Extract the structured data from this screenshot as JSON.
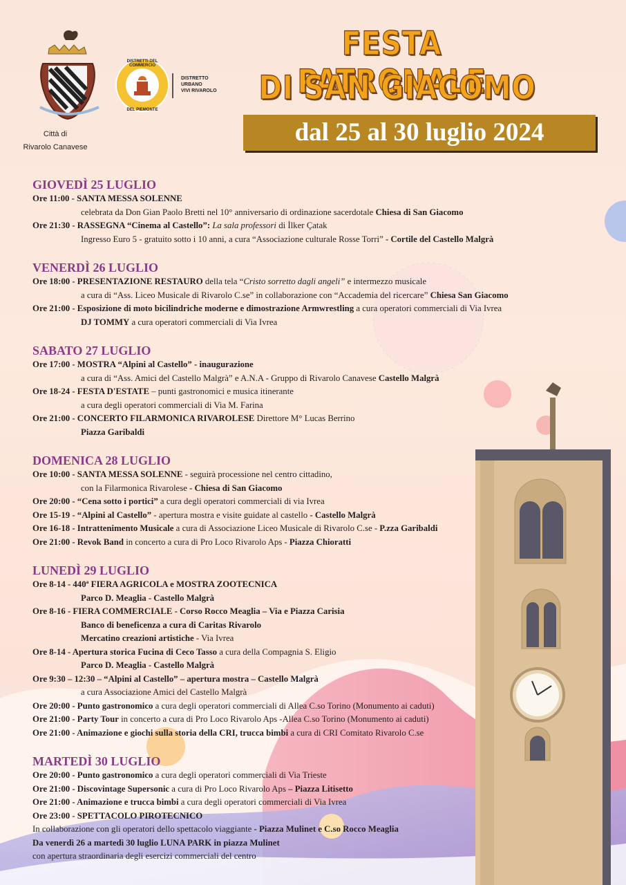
{
  "header": {
    "city_line1": "Città di",
    "city_line2": "Rivarolo Canavese",
    "district_ring_top": "DISTRETTI DEL COMMERCIO",
    "district_ring_bottom": "DEL PIEMONTE",
    "district_lines": [
      "DISTRETTO",
      "URBANO",
      "VIVI RIVAROLO"
    ],
    "title_line1": "FESTA PATRONALE",
    "title_line2": "DI SAN GIACOMO",
    "dates": "dal 25 al 30 luglio 2024"
  },
  "days": [
    {
      "heading": "GIOVEDÌ 25 LUGLIO",
      "entries": [
        [
          [
            {
              "b": "Ore 11:00 - SANTA MESSA SOLENNE"
            }
          ],
          [
            {
              "n": "celebrata da Don Gian Paolo Bretti  nel 10° anniversario di ordinazione sacerdotale "
            },
            {
              "b": "Chiesa di San Giacomo"
            }
          ]
        ],
        [
          [
            {
              "b": "Ore 21:30 - RASSEGNA “Cinema al Castello”: "
            },
            {
              "i": "La sala professori"
            },
            {
              "n": " di İlker Çatak"
            }
          ],
          [
            {
              "n": "Ingresso Euro 5 - gratuito sotto i 10 anni, a cura “Associazione culturale Rosse Torri” "
            },
            {
              "b": "- Cortile del Castello Malgrà"
            }
          ]
        ]
      ]
    },
    {
      "heading": "VENERDÌ 26 LUGLIO",
      "entries": [
        [
          [
            {
              "b": "Ore 18:00 - PRESENTAZIONE RESTAURO"
            },
            {
              "n": " della tela “"
            },
            {
              "i": "Cristo sorretto dagli angeli”"
            },
            {
              "n": " e intermezzo musicale"
            }
          ],
          [
            {
              "n": "a cura di “Ass. Liceo Musicale di Rivarolo C.se” in collaborazione con “Accademia del ricercare” "
            },
            {
              "b": "Chiesa San Giacomo"
            }
          ]
        ],
        [
          [
            {
              "b": "Ore 21:00 - Esposizione di moto bicilindriche moderne e dimostrazione Armwrestling"
            },
            {
              "n": " a cura operatori commerciali di Via Ivrea"
            }
          ],
          [
            {
              "b": "DJ TOMMY"
            },
            {
              "n": " a cura operatori commerciali di Via Ivrea"
            }
          ]
        ]
      ]
    },
    {
      "heading": "SABATO 27 LUGLIO",
      "entries": [
        [
          [
            {
              "b": "Ore 17:00 - MOSTRA “Alpini al Castello” - inaugurazione"
            }
          ],
          [
            {
              "n": "a cura di “Ass. Amici del Castello Malgrà” e A.N.A - Gruppo di Rivarolo Canavese "
            },
            {
              "b": "Castello Malgrà"
            }
          ]
        ],
        [
          [
            {
              "b": "Ore 18-24 - FESTA D'ESTATE"
            },
            {
              "n": " – punti gastronomici e musica itinerante"
            }
          ],
          [
            {
              "n": "a cura degli operatori commerciali di Via M. Farina"
            }
          ]
        ],
        [
          [
            {
              "b": "Ore 21:00 - CONCERTO FILARMONICA RIVAROLESE"
            },
            {
              "n": " Direttore M° Lucas Berrino"
            }
          ],
          [
            {
              "b": "Piazza Garibaldi"
            }
          ]
        ]
      ]
    },
    {
      "heading": "DOMENICA 28 LUGLIO",
      "entries": [
        [
          [
            {
              "b": "Ore 10:00 - SANTA MESSA SOLENNE"
            },
            {
              "n": " - seguirà processione nel centro cittadino,"
            }
          ],
          [
            {
              "n": "con la Filarmonica Rivarolese "
            },
            {
              "b": "- Chiesa di San Giacomo"
            }
          ]
        ],
        [
          [
            {
              "b": "Ore 20:00 - “Cena sotto i portici”"
            },
            {
              "n": " a cura degli operatori commerciali di via Ivrea"
            }
          ]
        ],
        [
          [
            {
              "b": "Ore 15-19 - “Alpini al Castello”"
            },
            {
              "n": " - apertura mostra e visite guidate al castello "
            },
            {
              "b": " - Castello Malgrà"
            }
          ]
        ],
        [
          [
            {
              "b": "Ore 16-18 - Intrattenimento Musicale"
            },
            {
              "n": " a cura di Associazione Liceo Musicale di Rivarolo C.se - "
            },
            {
              "b": "P.zza Garibaldi"
            }
          ]
        ],
        [
          [
            {
              "b": "Ore 21:00 - Revok Band"
            },
            {
              "n": " in concerto a cura di Pro Loco Rivarolo Aps - "
            },
            {
              "b": "Piazza Chioratti"
            }
          ]
        ]
      ]
    },
    {
      "heading": "LUNEDÌ 29 LUGLIO",
      "entries": [
        [
          [
            {
              "b": "Ore 8-14 - 440ª FIERA AGRICOLA e MOSTRA ZOOTECNICA"
            }
          ],
          [
            {
              "b": "Parco D. Meaglia - Castello Malgrà"
            }
          ]
        ],
        [
          [
            {
              "b": "Ore 8-16 - FIERA COMMERCIALE - Corso Rocco Meaglia – Via e Piazza Carisia"
            }
          ],
          [
            {
              "b": "Banco di beneficenza a cura di Caritas Rivarolo"
            }
          ],
          [
            {
              "b": "Mercatino creazioni artistiche"
            },
            {
              "n": " - Via Ivrea"
            }
          ]
        ],
        [
          [
            {
              "b": "Ore 8-14 - Apertura storica Fucina di Ceco Tasso"
            },
            {
              "n": " a cura della Compagnia S. Eligio"
            }
          ],
          [
            {
              "b": "Parco D. Meaglia - Castello Malgrà"
            }
          ]
        ],
        [
          [
            {
              "b": "Ore 9:30 – 12:30 – “Alpini al Castello” – apertura mostra – Castello Malgrà"
            }
          ],
          [
            {
              "n": "a cura Associazione Amici del Castello Malgrà"
            }
          ]
        ],
        [
          [
            {
              "b": "Ore 20:00 - Punto gastronomico"
            },
            {
              "n": " a cura degli operatori commerciali di Allea C.so Torino (Monumento ai caduti)"
            }
          ]
        ],
        [
          [
            {
              "b": "Ore 21:00 - Party Tour"
            },
            {
              "n": " in concerto a cura di Pro Loco Rivarolo Aps -Allea C.so Torino (Monumento ai caduti)"
            }
          ]
        ],
        [
          [
            {
              "b": "Ore 21:00 - Animazione e giochi sulla storia della CRI, trucca bimbi"
            },
            {
              "n": " a cura di CRI Comitato Rivarolo C.se"
            }
          ]
        ]
      ]
    },
    {
      "heading": "MARTEDÌ 30 LUGLIO",
      "entries": [
        [
          [
            {
              "b": "Ore 20:00 - Punto gastronomico"
            },
            {
              "n": " a cura degli operatori commerciali di Via Trieste"
            }
          ]
        ],
        [
          [
            {
              "b": "Ore 21:00 - Discovintage Supersonic"
            },
            {
              "n": " a cura di Pro Loco Rivarolo Aps "
            },
            {
              "b": "– Piazza Litisetto"
            }
          ]
        ],
        [
          [
            {
              "b": "Ore 21:00 - Animazione e trucca bimbi"
            },
            {
              "n": " a cura degli operatori commerciali di Via Ivrea"
            }
          ]
        ],
        [
          [
            {
              "b": "Ore 23:00 - SPETTACOLO PIROTECNICO"
            }
          ]
        ],
        [
          [
            {
              "n": "In collaborazione con gli operatori dello spettacolo viaggiante "
            },
            {
              "b": "- Piazza Mulinet e C.so Rocco Meaglia"
            }
          ]
        ],
        [
          [
            {
              "b": "Da venerdì 26 a martedì 30 luglio LUNA PARK in piazza Mulinet"
            }
          ]
        ],
        [
          [
            {
              "n": "con apertura straordinaria degli esercizi commerciali del centro"
            }
          ]
        ]
      ]
    }
  ]
}
